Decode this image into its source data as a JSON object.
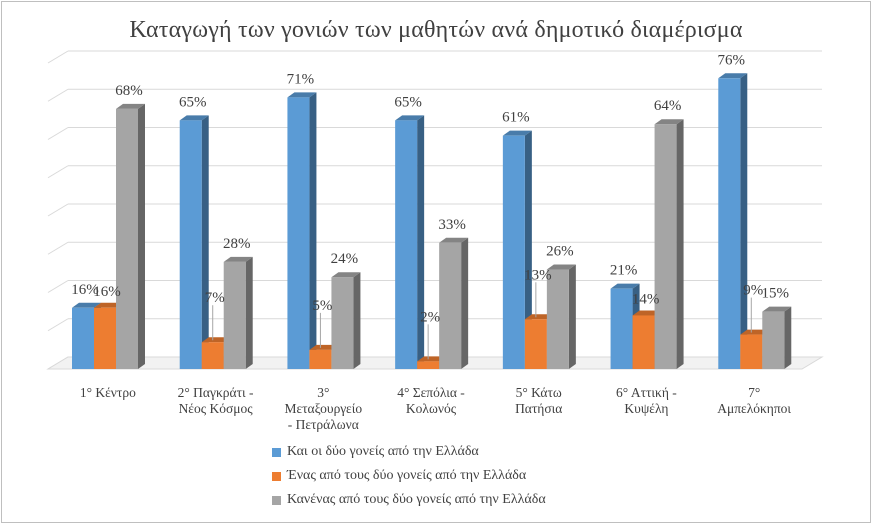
{
  "chart_data": {
    "type": "bar",
    "title": "Καταγωγή των γονιών των μαθητών ανά δημοτικό διαμέρισμα",
    "categories": [
      [
        "1° Κέντρο"
      ],
      [
        "2° Παγκράτι -",
        "Νέος Κόσμος"
      ],
      [
        "3°",
        "Μεταξουργείο",
        "- Πετράλωνα"
      ],
      [
        "4° Σεπόλια -",
        "Κολωνός"
      ],
      [
        "5° Κάτω",
        "Πατήσια"
      ],
      [
        "6° Αττική -",
        "Κυψέλη"
      ],
      [
        "7°",
        "Αμπελόκηποι"
      ]
    ],
    "series": [
      {
        "name": "Και οι δύο γονείς από την Ελλάδα",
        "color": "#5b9bd5",
        "values": [
          16,
          65,
          71,
          65,
          61,
          21,
          76
        ]
      },
      {
        "name": "Ένας από τους δύο γονείς από την Ελλάδα",
        "color": "#ed7d31",
        "values": [
          16,
          7,
          5,
          2,
          13,
          14,
          9
        ]
      },
      {
        "name": "Κανένας από τους δύο γονείς από την Ελλάδα",
        "color": "#a5a5a5",
        "values": [
          68,
          28,
          24,
          33,
          26,
          64,
          15
        ]
      }
    ],
    "value_suffix": "%",
    "ylim": [
      0,
      80
    ],
    "grid": true,
    "y_tick_labels_shown": false,
    "legend_position": "bottom",
    "style": "3d-clustered-column"
  }
}
